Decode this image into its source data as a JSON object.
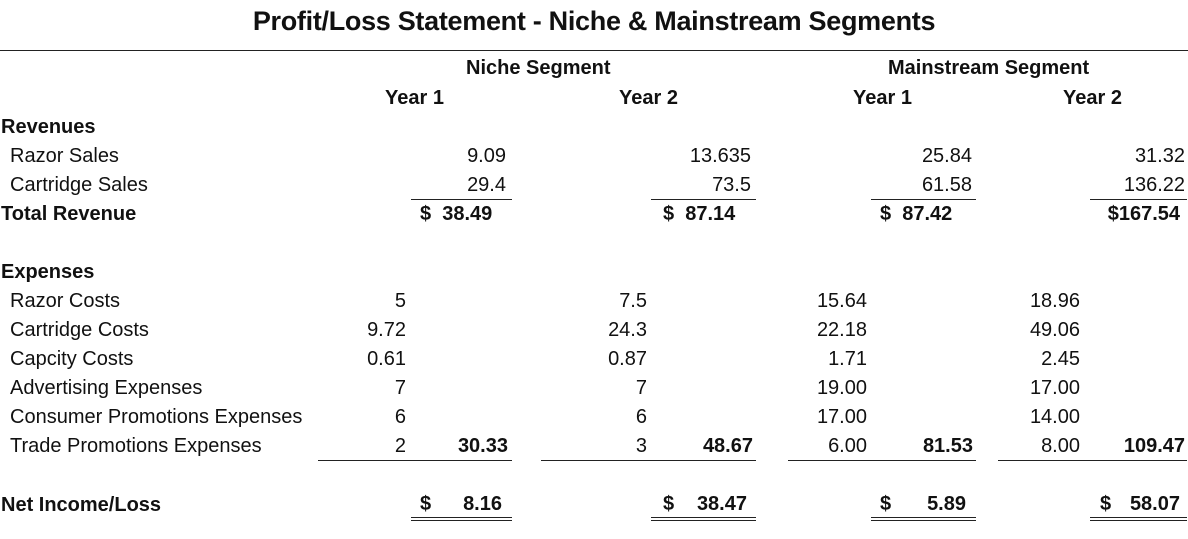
{
  "title": "Profit/Loss Statement - Niche & Mainstream Segments",
  "segments": {
    "niche": "Niche Segment",
    "mainstream": "Mainstream Segment"
  },
  "years": [
    "Year 1",
    "Year 2",
    "Year 1",
    "Year 2"
  ],
  "revenues": {
    "header": "Revenues",
    "razor_label": "Razor Sales",
    "cartridge_label": "Cartridge Sales",
    "razor": [
      "9.09",
      "13.635",
      "25.84",
      "31.32"
    ],
    "cartridge": [
      "29.4",
      "73.5",
      "61.58",
      "136.22"
    ],
    "total_label": "Total Revenue",
    "total": [
      "$  38.49",
      "$  87.14",
      "$  87.42",
      "$167.54"
    ]
  },
  "expenses": {
    "header": "Expenses",
    "labels": [
      "Razor Costs",
      "Cartridge Costs",
      "Capcity Costs",
      "Advertising Expenses",
      "Consumer Promotions Expenses",
      "Trade Promotions Expenses"
    ],
    "values": [
      [
        "5",
        "9.72",
        "0.61",
        "7",
        "6",
        "2"
      ],
      [
        "7.5",
        "24.3",
        "0.87",
        "7",
        "6",
        "3"
      ],
      [
        "15.64",
        "22.18",
        "1.71",
        "19.00",
        "17.00",
        "6.00"
      ],
      [
        "18.96",
        "49.06",
        "2.45",
        "17.00",
        "14.00",
        "8.00"
      ]
    ],
    "totals": [
      "30.33",
      "48.67",
      "81.53",
      "109.47"
    ]
  },
  "net": {
    "label": "Net Income/Loss",
    "currency": "$",
    "values": [
      "8.16",
      "38.47",
      "5.89",
      "58.07"
    ]
  }
}
